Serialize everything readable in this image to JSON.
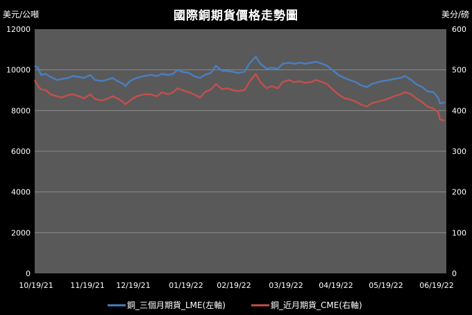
{
  "chart_data": {
    "type": "line",
    "title": "國際銅期貨價格走勢圖",
    "ylabel_left": "美元/公噸",
    "ylabel_right": "美分/磅",
    "ylim_left": [
      0,
      12000
    ],
    "ylim_right": [
      0,
      600
    ],
    "yticks_left": [
      "0",
      "2000",
      "4000",
      "6000",
      "8000",
      "10000",
      "12000"
    ],
    "yticks_right": [
      "0",
      "100",
      "200",
      "300",
      "400",
      "500",
      "600"
    ],
    "x_labels": [
      "10/19/21",
      "11/19/21",
      "12/19/21",
      "01/19/22",
      "02/19/22",
      "03/19/22",
      "04/19/22",
      "05/19/22",
      "06/19/22"
    ],
    "grid": true,
    "legend_position": "bottom",
    "series": [
      {
        "name": "銅_三個月期貨_LME(左軸)",
        "color": "#4a7ebf",
        "axis": "left",
        "points": [
          [
            "2021-10-19",
            10200
          ],
          [
            "2021-10-21",
            10100
          ],
          [
            "2021-10-23",
            9750
          ],
          [
            "2021-10-26",
            9800
          ],
          [
            "2021-10-29",
            9650
          ],
          [
            "2021-11-02",
            9500
          ],
          [
            "2021-11-05",
            9550
          ],
          [
            "2021-11-09",
            9600
          ],
          [
            "2021-11-12",
            9700
          ],
          [
            "2021-11-16",
            9650
          ],
          [
            "2021-11-19",
            9600
          ],
          [
            "2021-11-23",
            9750
          ],
          [
            "2021-11-26",
            9500
          ],
          [
            "2021-11-30",
            9450
          ],
          [
            "2021-12-03",
            9500
          ],
          [
            "2021-12-07",
            9600
          ],
          [
            "2021-12-10",
            9450
          ],
          [
            "2021-12-14",
            9300
          ],
          [
            "2021-12-15",
            9200
          ],
          [
            "2021-12-18",
            9450
          ],
          [
            "2021-12-22",
            9600
          ],
          [
            "2021-12-27",
            9700
          ],
          [
            "2021-12-31",
            9750
          ],
          [
            "2022-01-04",
            9700
          ],
          [
            "2022-01-07",
            9800
          ],
          [
            "2022-01-11",
            9750
          ],
          [
            "2022-01-14",
            9800
          ],
          [
            "2022-01-17",
            10000
          ],
          [
            "2022-01-20",
            9900
          ],
          [
            "2022-01-24",
            9850
          ],
          [
            "2022-01-27",
            9700
          ],
          [
            "2022-01-31",
            9600
          ],
          [
            "2022-02-03",
            9750
          ],
          [
            "2022-02-07",
            9850
          ],
          [
            "2022-02-10",
            10200
          ],
          [
            "2022-02-14",
            9950
          ],
          [
            "2022-02-17",
            9950
          ],
          [
            "2022-02-21",
            9900
          ],
          [
            "2022-02-24",
            9850
          ],
          [
            "2022-02-28",
            9900
          ],
          [
            "2022-03-03",
            10300
          ],
          [
            "2022-03-07",
            10650
          ],
          [
            "2022-03-10",
            10300
          ],
          [
            "2022-03-14",
            10050
          ],
          [
            "2022-03-17",
            10100
          ],
          [
            "2022-03-21",
            10050
          ],
          [
            "2022-03-24",
            10300
          ],
          [
            "2022-03-28",
            10350
          ],
          [
            "2022-03-31",
            10300
          ],
          [
            "2022-04-04",
            10350
          ],
          [
            "2022-04-07",
            10300
          ],
          [
            "2022-04-11",
            10350
          ],
          [
            "2022-04-14",
            10400
          ],
          [
            "2022-04-18",
            10300
          ],
          [
            "2022-04-21",
            10200
          ],
          [
            "2022-04-25",
            9950
          ],
          [
            "2022-04-28",
            9750
          ],
          [
            "2022-05-02",
            9600
          ],
          [
            "2022-05-05",
            9500
          ],
          [
            "2022-05-09",
            9400
          ],
          [
            "2022-05-12",
            9250
          ],
          [
            "2022-05-16",
            9150
          ],
          [
            "2022-05-19",
            9300
          ],
          [
            "2022-05-23",
            9400
          ],
          [
            "2022-05-26",
            9450
          ],
          [
            "2022-05-30",
            9500
          ],
          [
            "2022-06-02",
            9550
          ],
          [
            "2022-06-06",
            9600
          ],
          [
            "2022-06-09",
            9700
          ],
          [
            "2022-06-13",
            9500
          ],
          [
            "2022-06-16",
            9300
          ],
          [
            "2022-06-20",
            9150
          ],
          [
            "2022-06-23",
            8950
          ],
          [
            "2022-06-27",
            8900
          ],
          [
            "2022-06-30",
            8600
          ],
          [
            "2022-07-01",
            8350
          ],
          [
            "2022-07-04",
            8400
          ]
        ]
      },
      {
        "name": "銅_近月期貨_CME(右軸)",
        "color": "#c0504d",
        "axis": "right",
        "points": [
          [
            "2021-10-19",
            475
          ],
          [
            "2021-10-21",
            460
          ],
          [
            "2021-10-23",
            452
          ],
          [
            "2021-10-26",
            450
          ],
          [
            "2021-10-29",
            440
          ],
          [
            "2021-11-02",
            435
          ],
          [
            "2021-11-05",
            432
          ],
          [
            "2021-11-09",
            438
          ],
          [
            "2021-11-12",
            440
          ],
          [
            "2021-11-16",
            435
          ],
          [
            "2021-11-19",
            430
          ],
          [
            "2021-11-23",
            440
          ],
          [
            "2021-11-26",
            428
          ],
          [
            "2021-11-30",
            425
          ],
          [
            "2021-12-03",
            428
          ],
          [
            "2021-12-07",
            435
          ],
          [
            "2021-12-10",
            430
          ],
          [
            "2021-12-14",
            420
          ],
          [
            "2021-12-15",
            415
          ],
          [
            "2021-12-18",
            425
          ],
          [
            "2021-12-22",
            435
          ],
          [
            "2021-12-27",
            440
          ],
          [
            "2021-12-31",
            440
          ],
          [
            "2022-01-04",
            435
          ],
          [
            "2022-01-07",
            445
          ],
          [
            "2022-01-11",
            440
          ],
          [
            "2022-01-14",
            445
          ],
          [
            "2022-01-17",
            455
          ],
          [
            "2022-01-20",
            450
          ],
          [
            "2022-01-24",
            445
          ],
          [
            "2022-01-27",
            440
          ],
          [
            "2022-01-31",
            432
          ],
          [
            "2022-02-03",
            445
          ],
          [
            "2022-02-07",
            452
          ],
          [
            "2022-02-10",
            465
          ],
          [
            "2022-02-14",
            452
          ],
          [
            "2022-02-17",
            455
          ],
          [
            "2022-02-21",
            450
          ],
          [
            "2022-02-24",
            448
          ],
          [
            "2022-02-28",
            450
          ],
          [
            "2022-03-03",
            470
          ],
          [
            "2022-03-07",
            490
          ],
          [
            "2022-03-10",
            470
          ],
          [
            "2022-03-14",
            455
          ],
          [
            "2022-03-17",
            460
          ],
          [
            "2022-03-21",
            455
          ],
          [
            "2022-03-24",
            470
          ],
          [
            "2022-03-28",
            475
          ],
          [
            "2022-03-31",
            470
          ],
          [
            "2022-04-04",
            472
          ],
          [
            "2022-04-07",
            468
          ],
          [
            "2022-04-11",
            470
          ],
          [
            "2022-04-14",
            475
          ],
          [
            "2022-04-18",
            470
          ],
          [
            "2022-04-21",
            465
          ],
          [
            "2022-04-25",
            450
          ],
          [
            "2022-04-28",
            440
          ],
          [
            "2022-05-02",
            430
          ],
          [
            "2022-05-05",
            428
          ],
          [
            "2022-05-09",
            422
          ],
          [
            "2022-05-12",
            415
          ],
          [
            "2022-05-16",
            410
          ],
          [
            "2022-05-19",
            418
          ],
          [
            "2022-05-23",
            422
          ],
          [
            "2022-05-26",
            425
          ],
          [
            "2022-05-30",
            430
          ],
          [
            "2022-06-02",
            435
          ],
          [
            "2022-06-06",
            440
          ],
          [
            "2022-06-09",
            445
          ],
          [
            "2022-06-13",
            440
          ],
          [
            "2022-06-16",
            430
          ],
          [
            "2022-06-20",
            420
          ],
          [
            "2022-06-23",
            410
          ],
          [
            "2022-06-27",
            405
          ],
          [
            "2022-06-30",
            395
          ],
          [
            "2022-07-01",
            378
          ],
          [
            "2022-07-04",
            375
          ]
        ]
      }
    ]
  }
}
